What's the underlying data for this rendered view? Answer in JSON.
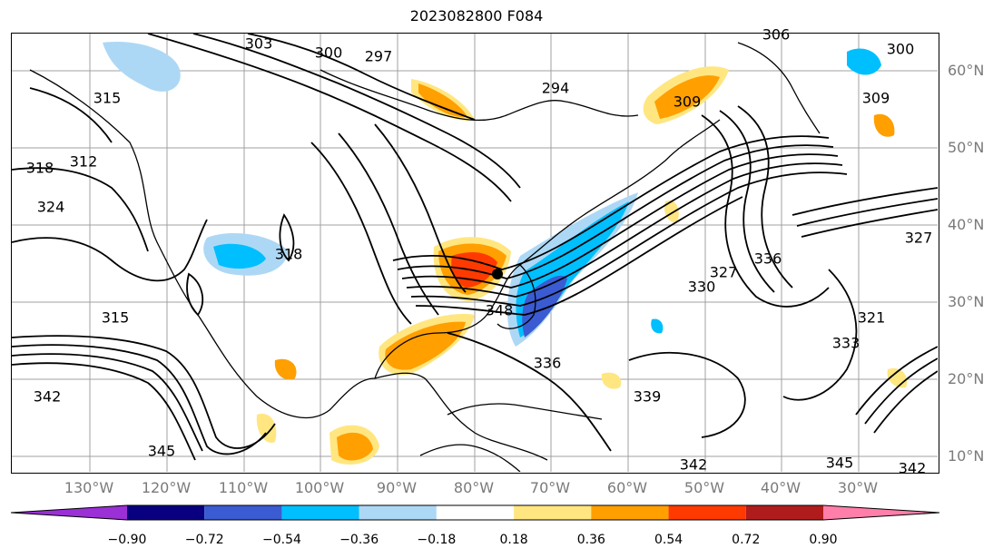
{
  "title": "2023082800 F084",
  "lat_labels": [
    "60°N",
    "50°N",
    "40°N",
    "30°N",
    "20°N",
    "10°N"
  ],
  "lon_labels": [
    "130°W",
    "120°W",
    "110°W",
    "100°W",
    "90°W",
    "80°W",
    "70°W",
    "60°W",
    "50°W",
    "40°W",
    "30°W"
  ],
  "contour_labels": [
    "297",
    "300",
    "294",
    "309",
    "315",
    "318",
    "312",
    "324",
    "315",
    "318",
    "327",
    "330",
    "336",
    "333",
    "342",
    "345",
    "342",
    "339",
    "336",
    "345",
    "342",
    "348",
    "321",
    "327",
    "300",
    "309",
    "303",
    "306"
  ],
  "colorbar": {
    "ticks": [
      "−0.90",
      "−0.72",
      "−0.54",
      "−0.36",
      "−0.18",
      "0.18",
      "0.36",
      "0.54",
      "0.72",
      "0.90"
    ],
    "colors": [
      "#9b30d6",
      "#08007f",
      "#3a5bd1",
      "#00bfff",
      "#add8f5",
      "#ffffff",
      "#ffe680",
      "#ff9f00",
      "#ff3a00",
      "#b01c1c",
      "#ff7faa"
    ]
  }
}
